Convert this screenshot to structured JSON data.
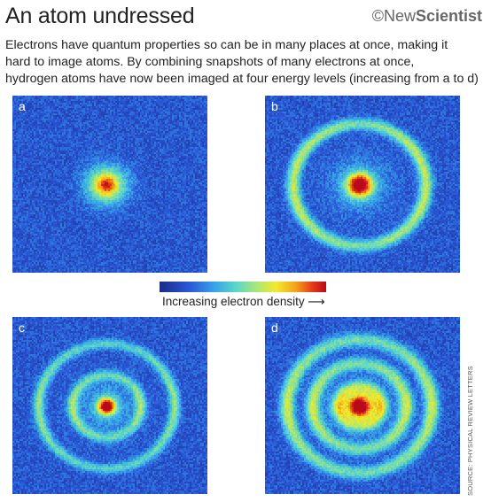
{
  "header": {
    "title": "An atom undressed",
    "brand_prefix": "©",
    "brand_new": "New",
    "brand_scientist": "Scientist"
  },
  "intro": {
    "lines": [
      "Electrons have quantum properties so can be in many places at once, making it",
      "hard to image atoms. By combining snapshots of many electrons at once,",
      "hydrogen atoms have now been imaged at four energy levels (increasing from a to d)"
    ]
  },
  "panels": [
    {
      "letter": "a",
      "rings": []
    },
    {
      "letter": "b",
      "rings": [
        0.78
      ]
    },
    {
      "letter": "c",
      "rings": [
        0.4,
        0.8
      ]
    },
    {
      "letter": "d",
      "rings": [
        0.25,
        0.55,
        0.85
      ]
    }
  ],
  "colorbar": {
    "label": "Increasing electron density ⟶",
    "colors": [
      "#1a2a8a",
      "#2a58d8",
      "#38a8e8",
      "#5cd6c8",
      "#a8e67a",
      "#f2ea2a",
      "#f4a018",
      "#e43818",
      "#b80a1a"
    ]
  },
  "source": "SOURCE: PHYSICAL REVIEW LETTERS"
}
